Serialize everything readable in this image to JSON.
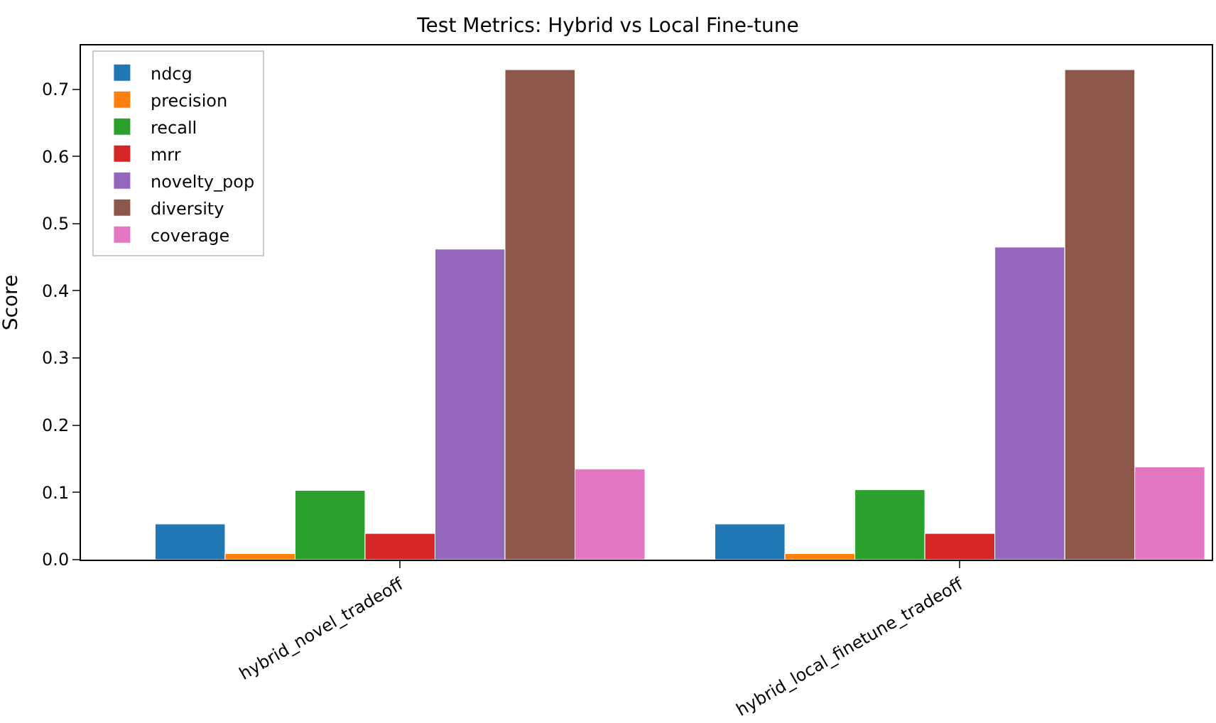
{
  "chart_data": {
    "type": "bar",
    "title": "Test Metrics: Hybrid vs Local Fine-tune",
    "ylabel": "Score",
    "categories": [
      "hybrid_novel_tradeoff",
      "hybrid_local_finetune_tradeoff"
    ],
    "series": [
      {
        "name": "ndcg",
        "color": "#1f77b4",
        "values": [
          0.053,
          0.053
        ]
      },
      {
        "name": "precision",
        "color": "#ff7f0e",
        "values": [
          0.009,
          0.009
        ]
      },
      {
        "name": "recall",
        "color": "#2ca02c",
        "values": [
          0.103,
          0.104
        ]
      },
      {
        "name": "mrr",
        "color": "#d62728",
        "values": [
          0.039,
          0.039
        ]
      },
      {
        "name": "novelty_pop",
        "color": "#9467bd",
        "values": [
          0.462,
          0.465
        ]
      },
      {
        "name": "diversity",
        "color": "#8c564b",
        "values": [
          0.729,
          0.729
        ]
      },
      {
        "name": "coverage",
        "color": "#e377c2",
        "values": [
          0.135,
          0.138
        ]
      }
    ],
    "ylim": [
      0,
      0.765
    ],
    "yticks": [
      {
        "value": 0,
        "label": "0.0"
      },
      0.1,
      0.2,
      0.3,
      0.4,
      0.5,
      0.6,
      0.7
    ],
    "legend": "top left"
  }
}
